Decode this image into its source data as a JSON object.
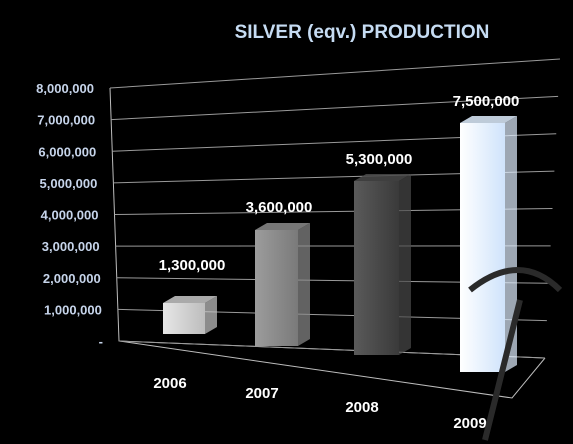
{
  "chart_data": {
    "type": "bar",
    "title": "SILVER (eqv.) PRODUCTION",
    "xlabel": "",
    "ylabel": "",
    "categories": [
      "2006",
      "2007",
      "2008",
      "2009"
    ],
    "values": [
      1300000,
      3600000,
      5300000,
      7500000
    ],
    "data_labels": [
      "1,300,000",
      "3,600,000",
      "5,300,000",
      "7,500,000"
    ],
    "y_ticks": [
      0,
      1000000,
      2000000,
      3000000,
      4000000,
      5000000,
      6000000,
      7000000,
      8000000
    ],
    "y_tick_labels": [
      "-",
      "1,000,000",
      "2,000,000",
      "3,000,000",
      "4,000,000",
      "5,000,000",
      "6,000,000",
      "7,000,000",
      "8,000,000"
    ],
    "ylim": [
      0,
      8000000
    ],
    "grid": true,
    "legend": "none",
    "style": "3d-perspective-columns",
    "bar_colors": [
      "#c8c8c8",
      "#8c8c8c",
      "#4a4a4a",
      "#dfeeff"
    ],
    "background": "#000000"
  }
}
